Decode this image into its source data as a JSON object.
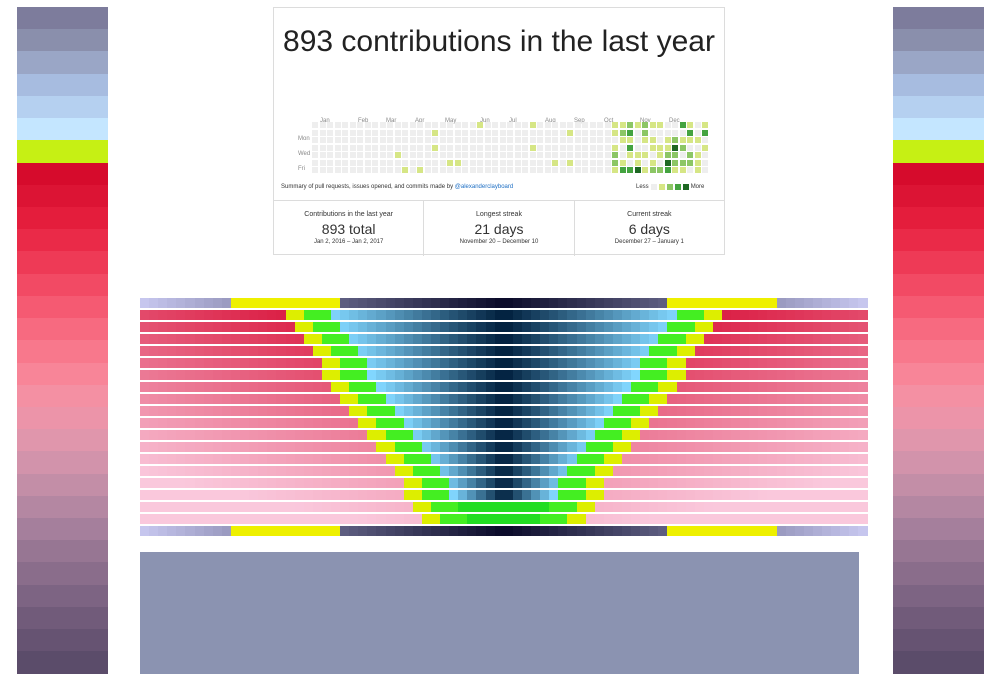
{
  "card": {
    "title": "893 contributions in the last year",
    "months": [
      "Jan",
      "Feb",
      "Mar",
      "Apr",
      "May",
      "Jun",
      "Jul",
      "Aug",
      "Sep",
      "Oct",
      "Nov",
      "Dec"
    ],
    "day_labels": [
      "Mon",
      "Wed",
      "Fri"
    ],
    "summary_prefix": "Summary of pull requests, issues opened, and commits made by",
    "summary_user": "@alexanderclayboard",
    "legend_less": "Less",
    "legend_more": "More",
    "legend_colors": [
      "#eeeeee",
      "#d6e685",
      "#8cc665",
      "#44a340",
      "#1e6823"
    ],
    "stats": [
      {
        "label": "Contributions in the last year",
        "value": "893 total",
        "range": "Jan 2, 2016 – Jan 2, 2017"
      },
      {
        "label": "Longest streak",
        "value": "21 days",
        "range": "November 20 – December 10"
      },
      {
        "label": "Current streak",
        "value": "6 days",
        "range": "December 27 – January 1"
      }
    ]
  },
  "colors": {
    "strip": [
      "#7d7c9c",
      "#8a8fac",
      "#9aa6c6",
      "#a7bce0",
      "#b5d0f0",
      "#c4e6ff",
      "#c6f014",
      "#d60b2c",
      "#dc1434",
      "#e41d3c",
      "#ea2a48",
      "#ee3a56",
      "#f24a64",
      "#f55a72",
      "#f76a80",
      "#f8788c",
      "#f88598",
      "#f490a3",
      "#ec94a9",
      "#e096ac",
      "#d293ab",
      "#c38ea7",
      "#b487a2",
      "#a57f9c",
      "#977693",
      "#8a6d8b",
      "#7d6483",
      "#715b7a",
      "#665372",
      "#5b4c6a"
    ],
    "pyramid_bg": "#8b93b1",
    "bottom_panel": "#8b93b1"
  }
}
